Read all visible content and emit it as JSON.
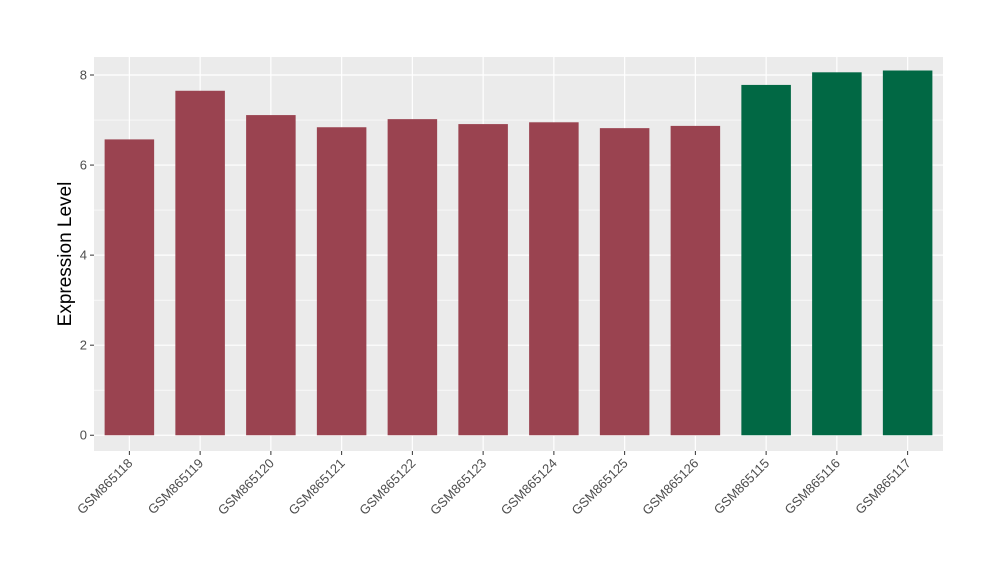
{
  "chart_data": {
    "type": "bar",
    "title": "",
    "xlabel": "",
    "ylabel": "Expression Level",
    "ylim": [
      -0.35,
      8.4
    ],
    "yticks": [
      0,
      2,
      4,
      6,
      8
    ],
    "grid": true,
    "categories": [
      "GSM865118",
      "GSM865119",
      "GSM865120",
      "GSM865121",
      "GSM865122",
      "GSM865123",
      "GSM865124",
      "GSM865125",
      "GSM865126",
      "GSM865115",
      "GSM865116",
      "GSM865117"
    ],
    "values": [
      6.57,
      7.65,
      7.11,
      6.84,
      7.02,
      6.91,
      6.95,
      6.82,
      6.87,
      7.78,
      8.06,
      8.1
    ],
    "bar_colors": [
      "#9a4350",
      "#9a4350",
      "#9a4350",
      "#9a4350",
      "#9a4350",
      "#9a4350",
      "#9a4350",
      "#9a4350",
      "#9a4350",
      "#016844",
      "#016844",
      "#016844"
    ],
    "panel_background": "#ebebeb",
    "grid_color": "#ffffff"
  }
}
